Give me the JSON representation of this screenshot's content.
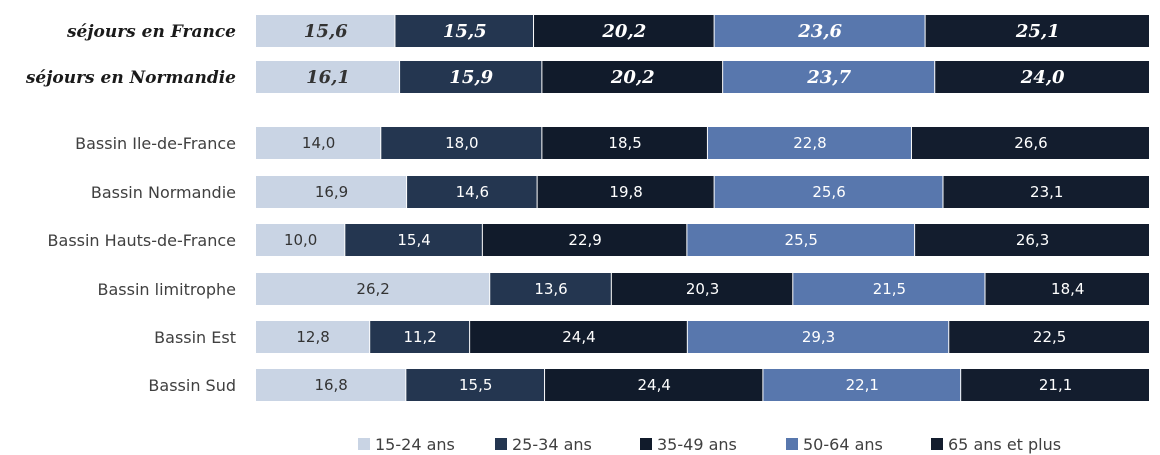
{
  "chart_data": {
    "type": "bar",
    "orientation": "horizontal",
    "stacked": true,
    "percent_stacked": true,
    "categories": [
      "séjours en France",
      "séjours en Normandie",
      "Bassin Ile-de-France",
      "Bassin Normandie",
      "Bassin Hauts-de-France",
      "Bassin limitrophe",
      "Bassin Est",
      "Bassin Sud"
    ],
    "highlighted_categories": [
      "séjours en France",
      "séjours en Normandie"
    ],
    "series": [
      {
        "name": "15-24 ans",
        "color": "#c9d4e4",
        "label_color": "#333333",
        "values": [
          15.6,
          16.1,
          14.0,
          16.9,
          10.0,
          26.2,
          12.8,
          16.8
        ],
        "labels": [
          "15,6",
          "16,1",
          "14,0",
          "16,9",
          "10,0",
          "26,2",
          "12,8",
          "16,8"
        ]
      },
      {
        "name": "25-34 ans",
        "color": "#243650",
        "label_color": "#ffffff",
        "values": [
          15.5,
          15.9,
          18.0,
          14.6,
          15.4,
          13.6,
          11.2,
          15.5
        ],
        "labels": [
          "15,5",
          "15,9",
          "18,0",
          "14,6",
          "15,4",
          "13,6",
          "11,2",
          "15,5"
        ]
      },
      {
        "name": "35-49 ans",
        "color": "#111b2b",
        "label_color": "#ffffff",
        "values": [
          20.2,
          20.2,
          18.5,
          19.8,
          22.9,
          20.3,
          24.4,
          24.4
        ],
        "labels": [
          "20,2",
          "20,2",
          "18,5",
          "19,8",
          "22,9",
          "20,3",
          "24,4",
          "24,4"
        ]
      },
      {
        "name": "50-64 ans",
        "color": "#5877ad",
        "label_color": "#ffffff",
        "values": [
          23.6,
          23.7,
          22.8,
          25.6,
          25.5,
          21.5,
          29.3,
          22.1
        ],
        "labels": [
          "23,6",
          "23,7",
          "22,8",
          "25,6",
          "25,5",
          "21,5",
          "29,3",
          "22,1"
        ]
      },
      {
        "name": "65 ans et plus",
        "color": "#131d2e",
        "label_color": "#ffffff",
        "values": [
          25.1,
          24.0,
          26.6,
          23.1,
          26.3,
          18.4,
          22.5,
          21.1
        ],
        "labels": [
          "25,1",
          "24,0",
          "26,6",
          "23,1",
          "26,3",
          "18,4",
          "22,5",
          "21,1"
        ]
      }
    ],
    "legend_position": "bottom",
    "grid": false
  }
}
